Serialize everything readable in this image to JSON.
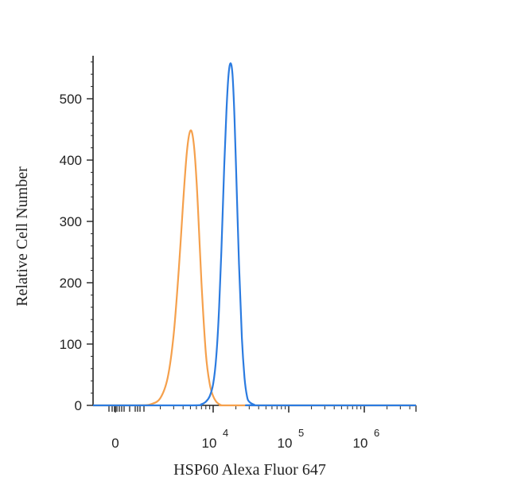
{
  "chart_data": {
    "type": "line",
    "xlabel": "HSP60 Alexa Fluor 647",
    "ylabel": "Relative Cell Number",
    "x_scale": "log",
    "ylim": [
      0,
      560
    ],
    "y_ticks": [
      {
        "value": 0,
        "label": "0"
      },
      {
        "value": 100,
        "label": "100"
      },
      {
        "value": 200,
        "label": "200"
      },
      {
        "value": 300,
        "label": "300"
      },
      {
        "value": 400,
        "label": "400"
      },
      {
        "value": 500,
        "label": "500"
      }
    ],
    "x_ticks": [
      {
        "value": 0,
        "base": "0",
        "exp": ""
      },
      {
        "value": 10000,
        "base": "10",
        "exp": "4"
      },
      {
        "value": 100000,
        "base": "10",
        "exp": "5"
      },
      {
        "value": 1000000,
        "base": "10",
        "exp": "6"
      }
    ],
    "grid": false,
    "series": [
      {
        "color": "#F5A04C",
        "x": [
          1000,
          1500,
          2000,
          2500,
          3000,
          3500,
          4000,
          4500,
          5000,
          5500,
          6000,
          6500,
          7000,
          8000,
          9000,
          10000,
          11000,
          12000,
          13000,
          15000,
          20000
        ],
        "y": [
          0,
          2,
          12,
          45,
          115,
          220,
          330,
          415,
          448,
          430,
          370,
          285,
          200,
          85,
          35,
          15,
          6,
          2,
          0,
          0,
          0
        ]
      },
      {
        "color": "#2B7BE0",
        "x": [
          5000,
          7000,
          8000,
          9000,
          10000,
          11000,
          12000,
          13000,
          14000,
          15000,
          16000,
          17000,
          18000,
          19000,
          20000,
          22000,
          24000,
          26000,
          28000,
          30000,
          35000,
          40000
        ],
        "y": [
          0,
          2,
          6,
          15,
          35,
          80,
          160,
          270,
          390,
          480,
          540,
          558,
          540,
          480,
          395,
          230,
          110,
          45,
          15,
          6,
          1,
          0
        ]
      }
    ]
  }
}
